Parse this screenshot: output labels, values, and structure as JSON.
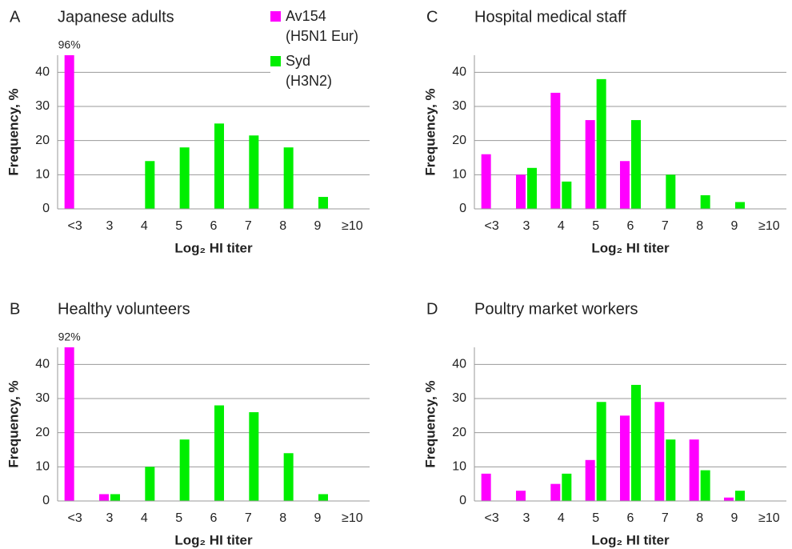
{
  "chart_data": [
    {
      "type": "bar",
      "panel": "A",
      "title": "Japanese adults",
      "xlabel": "Log₂ HI titer",
      "ylabel": "Frequency, %",
      "categories": [
        "<3",
        "3",
        "4",
        "5",
        "6",
        "7",
        "8",
        "9",
        "≥10"
      ],
      "ylim": [
        0,
        45
      ],
      "yticks": [
        0,
        10,
        20,
        30,
        40
      ],
      "grid": true,
      "series": [
        {
          "name": "Av154\n(H5N1 Eur)",
          "color": "#ff00ff",
          "values": [
            96,
            0,
            0,
            0,
            0,
            0,
            0,
            0,
            0
          ],
          "value_labels": [
            "96%",
            null,
            null,
            null,
            null,
            null,
            null,
            null,
            null
          ]
        },
        {
          "name": "Syd\n(H3N2)",
          "color": "#00ee00",
          "values": [
            0,
            0,
            14,
            18,
            25,
            21.5,
            18,
            3.5,
            0
          ]
        }
      ]
    },
    {
      "type": "bar",
      "panel": "C",
      "title": "Hospital medical staff",
      "xlabel": "Log₂ HI titer",
      "ylabel": "Frequency, %",
      "categories": [
        "<3",
        "3",
        "4",
        "5",
        "6",
        "7",
        "8",
        "9",
        "≥10"
      ],
      "ylim": [
        0,
        45
      ],
      "yticks": [
        0,
        10,
        20,
        30,
        40
      ],
      "grid": true,
      "series": [
        {
          "color": "#ff00ff",
          "values": [
            16,
            10,
            34,
            26,
            14,
            0,
            0,
            0,
            0
          ]
        },
        {
          "color": "#00ee00",
          "values": [
            0,
            12,
            8,
            38,
            26,
            10,
            4,
            2,
            0
          ]
        }
      ]
    },
    {
      "type": "bar",
      "panel": "B",
      "title": "Healthy volunteers",
      "xlabel": "Log₂ HI titer",
      "ylabel": "Frequency, %",
      "categories": [
        "<3",
        "3",
        "4",
        "5",
        "6",
        "7",
        "8",
        "9",
        "≥10"
      ],
      "ylim": [
        0,
        45
      ],
      "yticks": [
        0,
        10,
        20,
        30,
        40
      ],
      "grid": true,
      "series": [
        {
          "color": "#ff00ff",
          "values": [
            92,
            2,
            0,
            0,
            0,
            0,
            0,
            0,
            0
          ],
          "value_labels": [
            "92%",
            null,
            null,
            null,
            null,
            null,
            null,
            null,
            null
          ]
        },
        {
          "color": "#00ee00",
          "values": [
            0,
            2,
            10,
            18,
            28,
            26,
            14,
            2,
            0
          ]
        }
      ]
    },
    {
      "type": "bar",
      "panel": "D",
      "title": "Poultry market workers",
      "xlabel": "Log₂ HI titer",
      "ylabel": "Frequency, %",
      "categories": [
        "<3",
        "3",
        "4",
        "5",
        "6",
        "7",
        "8",
        "9",
        "≥10"
      ],
      "ylim": [
        0,
        45
      ],
      "yticks": [
        0,
        10,
        20,
        30,
        40
      ],
      "grid": true,
      "series": [
        {
          "color": "#ff00ff",
          "values": [
            8,
            3,
            5,
            12,
            25,
            29,
            18,
            1,
            0
          ]
        },
        {
          "color": "#00ee00",
          "values": [
            0,
            0,
            8,
            29,
            34,
            18,
            9,
            3,
            0
          ]
        }
      ]
    }
  ]
}
